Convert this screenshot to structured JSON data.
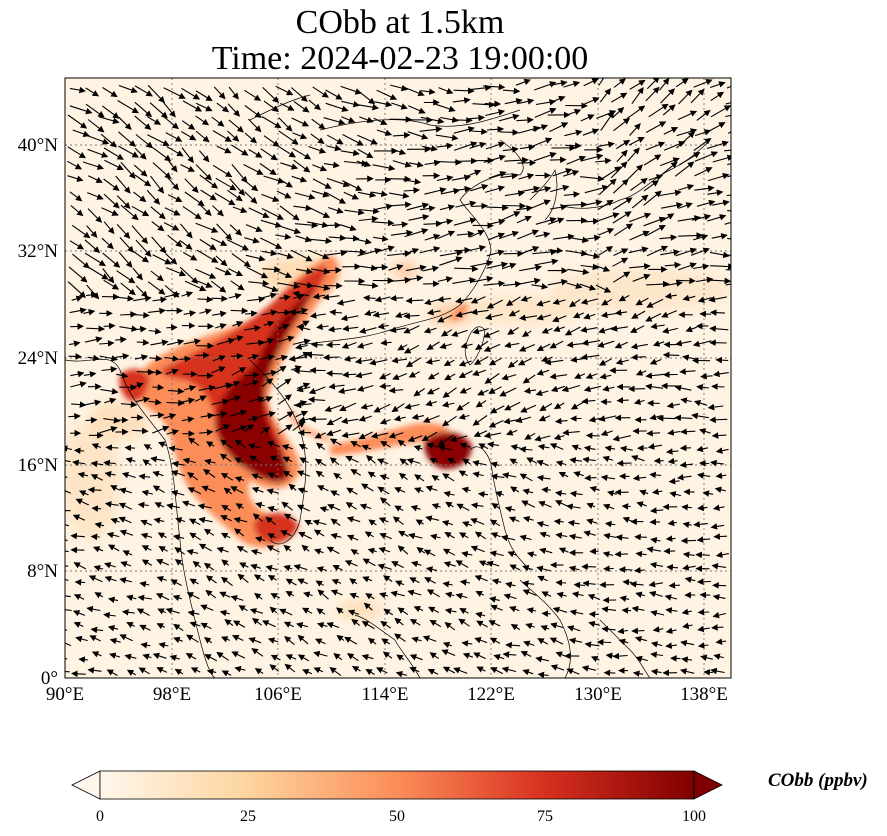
{
  "title_line1": "CObb at 1.5km",
  "title_line2": "Time: 2024-02-23 19:00:00",
  "map": {
    "lon_range": [
      90,
      140
    ],
    "lat_range": [
      0,
      45
    ],
    "lon_ticks": [
      "90°E",
      "98°E",
      "106°E",
      "114°E",
      "122°E",
      "130°E",
      "138°E"
    ],
    "lat_ticks": [
      "0°",
      "8°N",
      "16°N",
      "24°N",
      "32°N",
      "40°N"
    ],
    "gridlines": true,
    "colormap": "OrRd",
    "background_color": "#fff5e8",
    "plume_colors": [
      "#fdd49e",
      "#fc8d59",
      "#d7301f",
      "#990000",
      "#7f0000"
    ],
    "wind_vectors": "black quiver arrows"
  },
  "colorbar": {
    "label": "CObb (ppbv)",
    "ticks": [
      "0",
      "25",
      "50",
      "75",
      "100"
    ],
    "min": 0,
    "max": 100,
    "extend": "both"
  }
}
